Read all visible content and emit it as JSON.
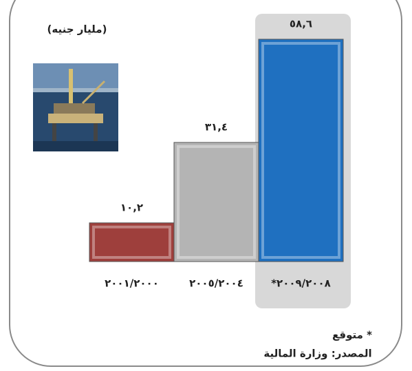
{
  "chart_data": {
    "type": "bar",
    "unit_label": "(مليار جنيه)",
    "categories": [
      "٢٠٠١/٢٠٠٠",
      "٢٠٠٥/٢٠٠٤",
      "*٢٠٠٩/٢٠٠٨"
    ],
    "values": [
      10.2,
      31.4,
      58.6
    ],
    "value_labels": [
      "١٠,٢",
      "٣١,٤",
      "٥٨,٦"
    ],
    "colors": [
      "#9e3f3c",
      "#b4b4b4",
      "#1f70c0"
    ],
    "footnote": "* متوقع",
    "source": "المصدر: وزارة المالية"
  }
}
